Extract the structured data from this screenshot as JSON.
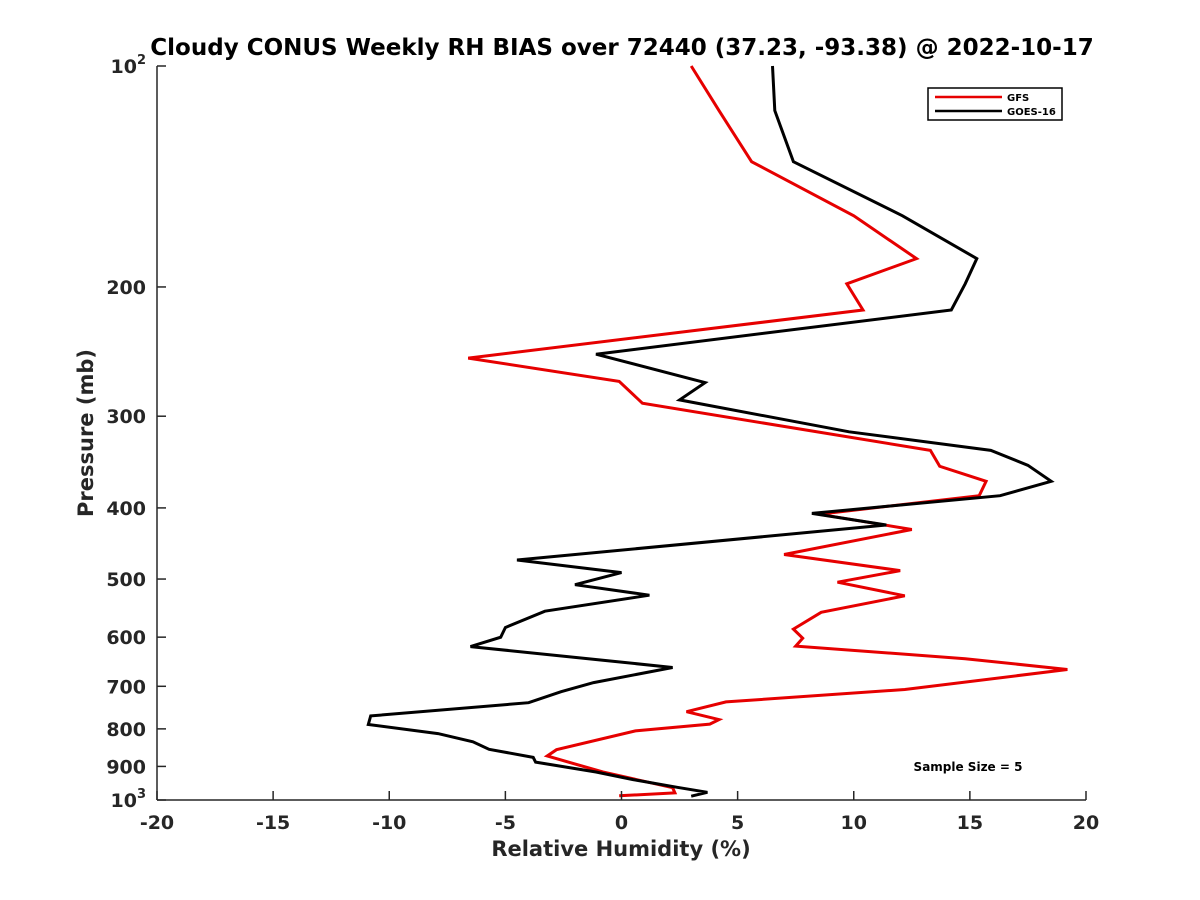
{
  "chart_data": {
    "type": "line",
    "title": "Cloudy CONUS Weekly RH BIAS over 72440 (37.23, -93.38) @ 2022-10-17",
    "xlabel": "Relative Humidity (%)",
    "ylabel": "Pressure (mb)",
    "xlim": [
      -20,
      20
    ],
    "ylim": [
      100,
      1000
    ],
    "y_scale": "log",
    "y_reversed": true,
    "grid": false,
    "x_ticks": [
      "-20",
      "-15",
      "-10",
      "-5",
      "0",
      "5",
      "10",
      "15",
      "20"
    ],
    "y_ticks": [
      {
        "value": 100,
        "base": "10",
        "exp": "2"
      },
      {
        "value": 200,
        "label": "200"
      },
      {
        "value": 300,
        "label": "300"
      },
      {
        "value": 400,
        "label": "400"
      },
      {
        "value": 500,
        "label": "500"
      },
      {
        "value": 600,
        "label": "600"
      },
      {
        "value": 700,
        "label": "700"
      },
      {
        "value": 800,
        "label": "800"
      },
      {
        "value": 900,
        "label": "900"
      },
      {
        "value": 1000,
        "base": "10",
        "exp": "3"
      }
    ],
    "legend_position": "top-right",
    "annotation": "Sample Size = 5",
    "series": [
      {
        "name": "GFS",
        "color": "#e60000",
        "points": [
          [
            3.0,
            100
          ],
          [
            4.2,
            115
          ],
          [
            5.6,
            135
          ],
          [
            10.0,
            160
          ],
          [
            12.7,
            183
          ],
          [
            9.7,
            198
          ],
          [
            10.4,
            215
          ],
          [
            -6.6,
            250
          ],
          [
            -0.1,
            269
          ],
          [
            0.9,
            288
          ],
          [
            13.3,
            334
          ],
          [
            13.7,
            351
          ],
          [
            15.7,
            368
          ],
          [
            15.4,
            385
          ],
          [
            8.5,
            408
          ],
          [
            12.5,
            428
          ],
          [
            7.0,
            463
          ],
          [
            12.0,
            487
          ],
          [
            9.3,
            505
          ],
          [
            12.2,
            527
          ],
          [
            8.6,
            555
          ],
          [
            7.4,
            585
          ],
          [
            7.8,
            602
          ],
          [
            7.5,
            617
          ],
          [
            14.8,
            642
          ],
          [
            19.2,
            664
          ],
          [
            12.2,
            707
          ],
          [
            4.5,
            735
          ],
          [
            2.8,
            758
          ],
          [
            4.2,
            777
          ],
          [
            3.8,
            788
          ],
          [
            0.6,
            805
          ],
          [
            -2.8,
            854
          ],
          [
            -3.2,
            871
          ],
          [
            -0.8,
            916
          ],
          [
            2.2,
            962
          ],
          [
            2.3,
            978
          ],
          [
            -0.1,
            987
          ]
        ]
      },
      {
        "name": "GOES-16",
        "color": "#000000",
        "points": [
          [
            6.5,
            100
          ],
          [
            6.6,
            115
          ],
          [
            7.4,
            135
          ],
          [
            12.1,
            160
          ],
          [
            15.3,
            183
          ],
          [
            14.8,
            198
          ],
          [
            14.2,
            215
          ],
          [
            -1.1,
            247
          ],
          [
            3.6,
            270
          ],
          [
            2.5,
            285
          ],
          [
            9.8,
            315
          ],
          [
            15.9,
            334
          ],
          [
            17.5,
            350
          ],
          [
            18.5,
            368
          ],
          [
            16.3,
            385
          ],
          [
            8.2,
            407
          ],
          [
            11.4,
            422
          ],
          [
            -4.5,
            471
          ],
          [
            0.0,
            490
          ],
          [
            -2.0,
            509
          ],
          [
            1.2,
            526
          ],
          [
            -3.3,
            553
          ],
          [
            -5.0,
            582
          ],
          [
            -5.2,
            600
          ],
          [
            -6.5,
            618
          ],
          [
            -0.8,
            645
          ],
          [
            2.2,
            660
          ],
          [
            -1.2,
            692
          ],
          [
            -2.6,
            712
          ],
          [
            -4.0,
            737
          ],
          [
            -10.8,
            768
          ],
          [
            -10.9,
            789
          ],
          [
            -7.9,
            812
          ],
          [
            -6.4,
            833
          ],
          [
            -5.7,
            853
          ],
          [
            -3.8,
            875
          ],
          [
            -3.7,
            888
          ],
          [
            -1.1,
            916
          ],
          [
            0.5,
            938
          ],
          [
            2.4,
            961
          ],
          [
            3.7,
            976
          ],
          [
            3.0,
            988
          ]
        ]
      }
    ]
  }
}
